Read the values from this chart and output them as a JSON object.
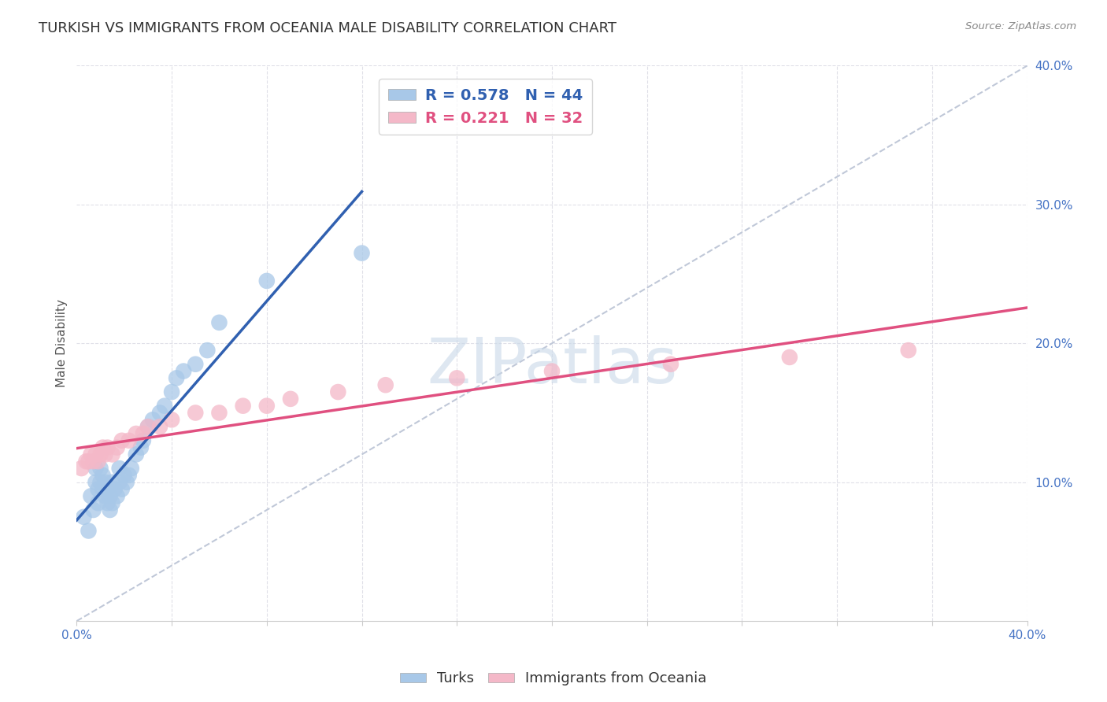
{
  "title": "TURKISH VS IMMIGRANTS FROM OCEANIA MALE DISABILITY CORRELATION CHART",
  "source": "Source: ZipAtlas.com",
  "ylabel": "Male Disability",
  "xlim": [
    0.0,
    0.4
  ],
  "ylim": [
    0.0,
    0.4
  ],
  "turks_R": 0.578,
  "turks_N": 44,
  "oceania_R": 0.221,
  "oceania_N": 32,
  "turks_color": "#a8c8e8",
  "oceania_color": "#f4b8c8",
  "turks_line_color": "#3060b0",
  "oceania_line_color": "#e05080",
  "diagonal_color": "#c0c8d8",
  "watermark_color": "#c8d8e8",
  "turks_x": [
    0.003,
    0.005,
    0.006,
    0.007,
    0.008,
    0.008,
    0.009,
    0.009,
    0.01,
    0.01,
    0.011,
    0.011,
    0.012,
    0.012,
    0.013,
    0.013,
    0.014,
    0.014,
    0.015,
    0.015,
    0.016,
    0.017,
    0.018,
    0.018,
    0.019,
    0.02,
    0.021,
    0.022,
    0.023,
    0.025,
    0.027,
    0.028,
    0.03,
    0.032,
    0.035,
    0.037,
    0.04,
    0.042,
    0.045,
    0.05,
    0.055,
    0.06,
    0.08,
    0.12
  ],
  "turks_y": [
    0.075,
    0.065,
    0.09,
    0.08,
    0.1,
    0.11,
    0.085,
    0.095,
    0.1,
    0.11,
    0.095,
    0.105,
    0.09,
    0.1,
    0.085,
    0.095,
    0.08,
    0.09,
    0.085,
    0.1,
    0.095,
    0.09,
    0.1,
    0.11,
    0.095,
    0.105,
    0.1,
    0.105,
    0.11,
    0.12,
    0.125,
    0.13,
    0.14,
    0.145,
    0.15,
    0.155,
    0.165,
    0.175,
    0.18,
    0.185,
    0.195,
    0.215,
    0.245,
    0.265
  ],
  "oceania_x": [
    0.002,
    0.004,
    0.005,
    0.006,
    0.007,
    0.008,
    0.009,
    0.01,
    0.011,
    0.012,
    0.013,
    0.015,
    0.017,
    0.019,
    0.022,
    0.025,
    0.028,
    0.03,
    0.035,
    0.04,
    0.05,
    0.06,
    0.07,
    0.08,
    0.09,
    0.11,
    0.13,
    0.16,
    0.2,
    0.25,
    0.3,
    0.35
  ],
  "oceania_y": [
    0.11,
    0.115,
    0.115,
    0.12,
    0.115,
    0.12,
    0.115,
    0.12,
    0.125,
    0.12,
    0.125,
    0.12,
    0.125,
    0.13,
    0.13,
    0.135,
    0.135,
    0.14,
    0.14,
    0.145,
    0.15,
    0.15,
    0.155,
    0.155,
    0.16,
    0.165,
    0.17,
    0.175,
    0.18,
    0.185,
    0.19,
    0.195
  ],
  "background_color": "#ffffff",
  "grid_color": "#e0e0e8",
  "watermark": "ZIPatlas"
}
